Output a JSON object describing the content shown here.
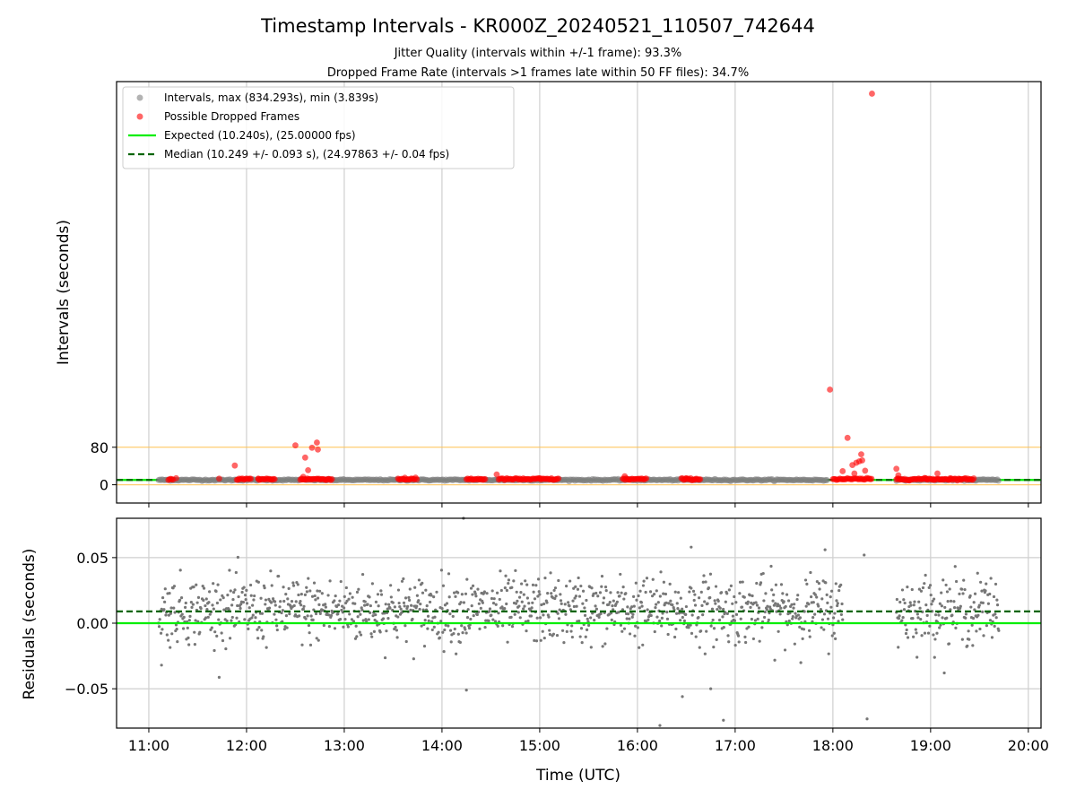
{
  "chart_data": [
    {
      "type": "scatter",
      "title": "Timestamp Intervals - KR000Z_20240521_110507_742644",
      "subtitle_lines": [
        "Jitter Quality (intervals within +/-1 frame): 93.3%",
        "Dropped Frame Rate (intervals >1 frames late within 50 FF files): 34.7%"
      ],
      "xlabel": "",
      "ylabel": "Intervals (seconds)",
      "x_unit": "hours UTC",
      "xlim": [
        10.67,
        20.13
      ],
      "ylim": [
        -39,
        860
      ],
      "yticks": [
        "0",
        "80"
      ],
      "ytick_values": [
        0,
        80
      ],
      "xticks": [
        "11:00",
        "12:00",
        "13:00",
        "14:00",
        "15:00",
        "16:00",
        "17:00",
        "18:00",
        "19:00",
        "20:00"
      ],
      "xtick_values": [
        11,
        12,
        13,
        14,
        15,
        16,
        17,
        18,
        19,
        20
      ],
      "grid": "vertical",
      "legend_position": "top-left",
      "legend": [
        {
          "label": "Intervals, max (834.293s), min (3.839s)",
          "marker": "dot",
          "color": "#808080"
        },
        {
          "label": "Possible Dropped Frames",
          "marker": "dot",
          "color": "#ff0000"
        },
        {
          "label": "Expected (10.240s), (25.00000 fps)",
          "marker": "line",
          "color": "#00ee00"
        },
        {
          "label": "Median (10.249 +/- 0.093 s), (24.97863 +/- 0.04 fps)",
          "marker": "dashed",
          "color": "#006400"
        }
      ],
      "reference_lines": [
        {
          "name": "threshold_low",
          "y": 0,
          "color": "#ffc04d"
        },
        {
          "name": "threshold_high",
          "y": 80,
          "color": "#ffc04d"
        },
        {
          "name": "Expected",
          "y": 10.24,
          "color": "#00ee00",
          "style": "solid"
        },
        {
          "name": "Median",
          "y": 10.249,
          "color": "#006400",
          "style": "dashed"
        }
      ],
      "series": [
        {
          "name": "Intervals",
          "color": "#808080",
          "segments": [
            [
              11.1,
              17.95
            ],
            [
              18.65,
              19.7
            ]
          ],
          "y_typical": 10.25
        },
        {
          "name": "Possible Dropped Frames",
          "color": "#ff0000",
          "clusters": [
            [
              11.2,
              11.25
            ],
            [
              11.9,
              12.05
            ],
            [
              12.12,
              12.3
            ],
            [
              12.55,
              12.88
            ],
            [
              13.55,
              13.75
            ],
            [
              14.25,
              14.45
            ],
            [
              14.58,
              15.2
            ],
            [
              15.85,
              16.1
            ],
            [
              16.45,
              16.65
            ],
            [
              18.0,
              18.4
            ],
            [
              18.65,
              19.45
            ]
          ],
          "y_typical": 12,
          "points": [
            {
              "x": 11.28,
              "y": 14
            },
            {
              "x": 11.72,
              "y": 13
            },
            {
              "x": 11.88,
              "y": 41
            },
            {
              "x": 12.12,
              "y": 13
            },
            {
              "x": 12.5,
              "y": 84
            },
            {
              "x": 12.6,
              "y": 58
            },
            {
              "x": 12.63,
              "y": 31
            },
            {
              "x": 12.58,
              "y": 17
            },
            {
              "x": 12.67,
              "y": 79
            },
            {
              "x": 12.72,
              "y": 90
            },
            {
              "x": 12.73,
              "y": 75
            },
            {
              "x": 13.62,
              "y": 15
            },
            {
              "x": 14.56,
              "y": 22
            },
            {
              "x": 15.0,
              "y": 14
            },
            {
              "x": 15.87,
              "y": 18
            },
            {
              "x": 16.5,
              "y": 13
            },
            {
              "x": 17.97,
              "y": 203
            },
            {
              "x": 18.1,
              "y": 29
            },
            {
              "x": 18.15,
              "y": 100
            },
            {
              "x": 18.2,
              "y": 42
            },
            {
              "x": 18.24,
              "y": 47
            },
            {
              "x": 18.27,
              "y": 50
            },
            {
              "x": 18.29,
              "y": 65
            },
            {
              "x": 18.3,
              "y": 52
            },
            {
              "x": 18.33,
              "y": 30
            },
            {
              "x": 18.22,
              "y": 24
            },
            {
              "x": 18.4,
              "y": 834.293
            },
            {
              "x": 18.65,
              "y": 34
            },
            {
              "x": 18.67,
              "y": 20
            },
            {
              "x": 18.95,
              "y": 14
            },
            {
              "x": 19.07,
              "y": 24
            },
            {
              "x": 19.2,
              "y": 14
            },
            {
              "x": 19.3,
              "y": 12
            }
          ]
        }
      ]
    },
    {
      "type": "scatter",
      "xlabel": "Time (UTC)",
      "ylabel": "Residuals (seconds)",
      "x_unit": "hours UTC",
      "xlim": [
        10.67,
        20.13
      ],
      "ylim": [
        -0.08,
        0.08
      ],
      "yticks": [
        "0.05",
        "0.00",
        "−0.05"
      ],
      "ytick_values": [
        0.05,
        0.0,
        -0.05
      ],
      "xticks": [
        "11:00",
        "12:00",
        "13:00",
        "14:00",
        "15:00",
        "16:00",
        "17:00",
        "18:00",
        "19:00",
        "20:00"
      ],
      "xtick_values": [
        11,
        12,
        13,
        14,
        15,
        16,
        17,
        18,
        19,
        20
      ],
      "grid": "both",
      "reference_lines": [
        {
          "name": "Expected",
          "y": 0.0,
          "color": "#00ee00",
          "style": "solid"
        },
        {
          "name": "Median",
          "y": 0.009,
          "color": "#006400",
          "style": "dashed"
        }
      ],
      "series": [
        {
          "name": "Residuals",
          "color": "#808080",
          "segments": [
            [
              11.1,
              18.1
            ],
            [
              18.65,
              19.7
            ]
          ],
          "mean": 0.01,
          "spread": 0.015,
          "outliers": [
            {
              "x": 14.22,
              "y": 0.08
            },
            {
              "x": 14.25,
              "y": -0.051
            },
            {
              "x": 16.23,
              "y": -0.078
            },
            {
              "x": 16.46,
              "y": -0.056
            },
            {
              "x": 16.75,
              "y": -0.05
            },
            {
              "x": 16.88,
              "y": -0.074
            },
            {
              "x": 18.32,
              "y": 0.052
            },
            {
              "x": 18.35,
              "y": -0.073
            },
            {
              "x": 17.92,
              "y": 0.056
            },
            {
              "x": 16.55,
              "y": 0.058
            },
            {
              "x": 11.13,
              "y": -0.032
            }
          ]
        }
      ]
    }
  ]
}
